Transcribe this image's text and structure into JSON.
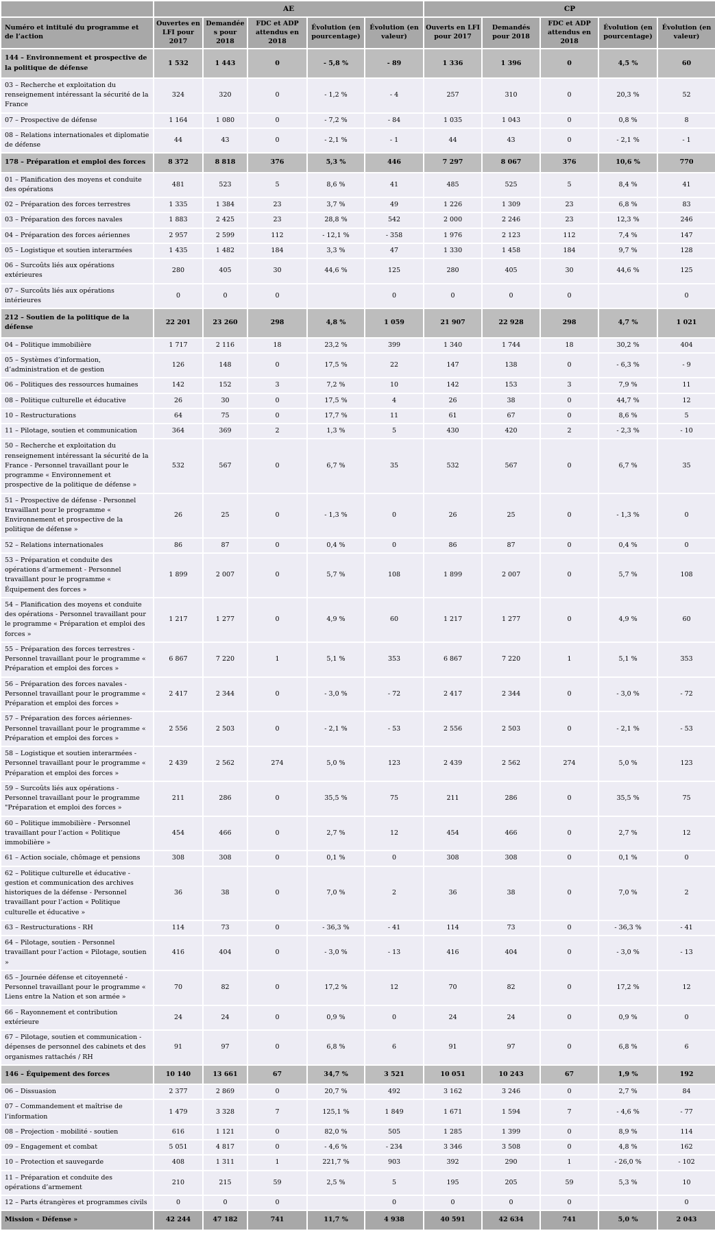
{
  "document_title": "Tableau budgétaire de la mission Défense (AE / CP)",
  "colors": {
    "header_gray": "#a8a8a8",
    "program_row_gray": "#bdbdbd",
    "total_row_gray": "#a8a8a8",
    "action_row_bg": "#edecf4",
    "grid_white": "#ffffff",
    "text": "#000000"
  },
  "table": {
    "corner_label": "Numéro et intitulé du programme et de l’action",
    "groups": [
      {
        "label": "AE"
      },
      {
        "label": "CP"
      }
    ],
    "ae_columns": [
      "Ouvertes en LFI pour 2017",
      "Demandées pour 2018",
      "FDC et ADP attendus en 2018",
      "Évolution (en pourcentage)",
      "Évolution (en valeur)"
    ],
    "cp_columns": [
      "Ouverts en LFI pour 2017",
      "Demandés pour 2018",
      "FDC et ADP attendus en 2018",
      "Évolution (en pourcentage)",
      "Évolution (en valeur)"
    ],
    "rows": [
      {
        "type": "program",
        "label": "144 – Environnement et prospective de la politique de défense",
        "ae": [
          "1 532",
          "1 443",
          "0",
          "- 5,8 %",
          "- 89"
        ],
        "cp": [
          "1 336",
          "1 396",
          "0",
          "4,5 %",
          "60"
        ]
      },
      {
        "type": "action",
        "label": "03 – Recherche et exploitation du renseignement intéressant la sécurité de la France",
        "ae": [
          "324",
          "320",
          "0",
          "- 1,2 %",
          "- 4"
        ],
        "cp": [
          "257",
          "310",
          "0",
          "20,3 %",
          "52"
        ]
      },
      {
        "type": "action",
        "label": "07 – Prospective de défense",
        "ae": [
          "1 164",
          "1 080",
          "0",
          "- 7,2 %",
          "- 84"
        ],
        "cp": [
          "1 035",
          "1 043",
          "0",
          "0,8 %",
          "8"
        ]
      },
      {
        "type": "action",
        "label": "08 – Relations internationales et diplomatie de défense",
        "ae": [
          "44",
          "43",
          "0",
          "- 2,1 %",
          "- 1"
        ],
        "cp": [
          "44",
          "43",
          "0",
          "- 2,1 %",
          "- 1"
        ]
      },
      {
        "type": "program",
        "label": "178 – Préparation et emploi des forces",
        "ae": [
          "8 372",
          "8 818",
          "376",
          "5,3 %",
          "446"
        ],
        "cp": [
          "7 297",
          "8 067",
          "376",
          "10,6 %",
          "770"
        ]
      },
      {
        "type": "action",
        "label": "01 – Planification des moyens et conduite des opérations",
        "ae": [
          "481",
          "523",
          "5",
          "8,6 %",
          "41"
        ],
        "cp": [
          "485",
          "525",
          "5",
          "8,4 %",
          "41"
        ]
      },
      {
        "type": "action",
        "label": "02 – Préparation des forces terrestres",
        "ae": [
          "1 335",
          "1 384",
          "23",
          "3,7 %",
          "49"
        ],
        "cp": [
          "1 226",
          "1 309",
          "23",
          "6,8 %",
          "83"
        ]
      },
      {
        "type": "action",
        "label": "03 – Préparation des forces navales",
        "ae": [
          "1 883",
          "2 425",
          "23",
          "28,8 %",
          "542"
        ],
        "cp": [
          "2 000",
          "2 246",
          "23",
          "12,3 %",
          "246"
        ]
      },
      {
        "type": "action",
        "label": "04 – Préparation des forces aériennes",
        "ae": [
          "2 957",
          "2 599",
          "112",
          "- 12,1 %",
          "- 358"
        ],
        "cp": [
          "1 976",
          "2 123",
          "112",
          "7,4 %",
          "147"
        ]
      },
      {
        "type": "action",
        "label": "05 – Logistique et soutien interarmées",
        "ae": [
          "1 435",
          "1 482",
          "184",
          "3,3 %",
          "47"
        ],
        "cp": [
          "1 330",
          "1 458",
          "184",
          "9,7 %",
          "128"
        ]
      },
      {
        "type": "action",
        "label": "06 – Surcoûts liés aux opérations extérieures",
        "ae": [
          "280",
          "405",
          "30",
          "44,6 %",
          "125"
        ],
        "cp": [
          "280",
          "405",
          "30",
          "44,6 %",
          "125"
        ]
      },
      {
        "type": "action",
        "label": "07 – Surcoûts liés aux opérations intérieures",
        "ae": [
          "0",
          "0",
          "0",
          "",
          "0"
        ],
        "cp": [
          "0",
          "0",
          "0",
          "",
          "0"
        ]
      },
      {
        "type": "program",
        "label": "212 – Soutien de la politique de la défense",
        "ae": [
          "22 201",
          "23 260",
          "298",
          "4,8 %",
          "1 059"
        ],
        "cp": [
          "21 907",
          "22 928",
          "298",
          "4,7 %",
          "1 021"
        ]
      },
      {
        "type": "action",
        "label": "04 – Politique immobilière",
        "ae": [
          "1 717",
          "2 116",
          "18",
          "23,2 %",
          "399"
        ],
        "cp": [
          "1 340",
          "1 744",
          "18",
          "30,2 %",
          "404"
        ]
      },
      {
        "type": "action",
        "label": "05 – Systèmes d’information, d’administration et de gestion",
        "ae": [
          "126",
          "148",
          "0",
          "17,5 %",
          "22"
        ],
        "cp": [
          "147",
          "138",
          "0",
          "- 6,3 %",
          "- 9"
        ]
      },
      {
        "type": "action",
        "label": "06 – Politiques des ressources humaines",
        "ae": [
          "142",
          "152",
          "3",
          "7,2 %",
          "10"
        ],
        "cp": [
          "142",
          "153",
          "3",
          "7,9 %",
          "11"
        ]
      },
      {
        "type": "action",
        "label": "08 – Politique culturelle et éducative",
        "ae": [
          "26",
          "30",
          "0",
          "17,5 %",
          "4"
        ],
        "cp": [
          "26",
          "38",
          "0",
          "44,7 %",
          "12"
        ]
      },
      {
        "type": "action",
        "label": "10 – Restructurations",
        "ae": [
          "64",
          "75",
          "0",
          "17,7 %",
          "11"
        ],
        "cp": [
          "61",
          "67",
          "0",
          "8,6 %",
          "5"
        ]
      },
      {
        "type": "action",
        "label": "11 – Pilotage, soutien et communication",
        "ae": [
          "364",
          "369",
          "2",
          "1,3 %",
          "5"
        ],
        "cp": [
          "430",
          "420",
          "2",
          "- 2,3 %",
          "- 10"
        ]
      },
      {
        "type": "action",
        "label": "50 – Recherche et exploitation du renseignement intéressant la sécurité de la France -  Personnel travaillant pour le programme « Environnement et prospective de la politique de défense »",
        "ae": [
          "532",
          "567",
          "0",
          "6,7 %",
          "35"
        ],
        "cp": [
          "532",
          "567",
          "0",
          "6,7 %",
          "35"
        ]
      },
      {
        "type": "action",
        "label": "51 – Prospective de défense -  Personnel travaillant pour le programme « Environnement et prospective de la politique de défense »",
        "ae": [
          "26",
          "25",
          "0",
          "- 1,3 %",
          "0"
        ],
        "cp": [
          "26",
          "25",
          "0",
          "- 1,3 %",
          "0"
        ]
      },
      {
        "type": "action",
        "label": "52 – Relations internationales",
        "ae": [
          "86",
          "87",
          "0",
          "0,4 %",
          "0"
        ],
        "cp": [
          "86",
          "87",
          "0",
          "0,4 %",
          "0"
        ]
      },
      {
        "type": "action",
        "label": "53 – Préparation et conduite des opérations d’armement -  Personnel travaillant pour le programme « Équipement des forces »",
        "ae": [
          "1 899",
          "2 007",
          "0",
          "5,7 %",
          "108"
        ],
        "cp": [
          "1 899",
          "2 007",
          "0",
          "5,7 %",
          "108"
        ]
      },
      {
        "type": "action",
        "label": "54 – Planification des moyens et conduite des opérations -  Personnel travaillant pour le programme « Préparation et emploi des forces »",
        "ae": [
          "1 217",
          "1 277",
          "0",
          "4,9 %",
          "60"
        ],
        "cp": [
          "1 217",
          "1 277",
          "0",
          "4,9 %",
          "60"
        ]
      },
      {
        "type": "action",
        "label": "55 – Préparation des forces terrestres -  Personnel travaillant pour le programme « Préparation et emploi des forces »",
        "ae": [
          "6 867",
          "7 220",
          "1",
          "5,1 %",
          "353"
        ],
        "cp": [
          "6 867",
          "7 220",
          "1",
          "5,1 %",
          "353"
        ]
      },
      {
        "type": "action",
        "label": "56 – Préparation des forces navales -  Personnel travaillant pour le programme « Préparation et emploi des forces »",
        "ae": [
          "2 417",
          "2 344",
          "0",
          "- 3,0 %",
          "- 72"
        ],
        "cp": [
          "2 417",
          "2 344",
          "0",
          "- 3,0 %",
          "- 72"
        ]
      },
      {
        "type": "action",
        "label": "57 – Préparation des forces aériennes-  Personnel travaillant pour le programme « Préparation et emploi des forces »",
        "ae": [
          "2 556",
          "2 503",
          "0",
          "- 2,1 %",
          "- 53"
        ],
        "cp": [
          "2 556",
          "2 503",
          "0",
          "- 2,1 %",
          "- 53"
        ]
      },
      {
        "type": "action",
        "label": "58 – Logistique et soutien interarmées -  Personnel travaillant pour le programme « Préparation et emploi des forces »",
        "ae": [
          "2 439",
          "2 562",
          "274",
          "5,0 %",
          "123"
        ],
        "cp": [
          "2 439",
          "2 562",
          "274",
          "5,0 %",
          "123"
        ]
      },
      {
        "type": "action",
        "label": "59 – Surcoûts liés aux opérations -  Personnel travaillant pour le programme \"Préparation et emploi des forces »",
        "ae": [
          "211",
          "286",
          "0",
          "35,5 %",
          "75"
        ],
        "cp": [
          "211",
          "286",
          "0",
          "35,5 %",
          "75"
        ]
      },
      {
        "type": "action",
        "label": "60 – Politique immobilière -  Personnel travaillant pour l’action « Politique immobilière »",
        "ae": [
          "454",
          "466",
          "0",
          "2,7 %",
          "12"
        ],
        "cp": [
          "454",
          "466",
          "0",
          "2,7 %",
          "12"
        ]
      },
      {
        "type": "action",
        "label": "61 – Action sociale, chômage et pensions",
        "ae": [
          "308",
          "308",
          "0",
          "0,1 %",
          "0"
        ],
        "cp": [
          "308",
          "308",
          "0",
          "0,1 %",
          "0"
        ]
      },
      {
        "type": "action",
        "label": "62 – Politique culturelle et éducative -  gestion et communication des archives historiques de la défense -  Personnel travaillant pour l’action « Politique culturelle et éducative »",
        "ae": [
          "36",
          "38",
          "0",
          "7,0 %",
          "2"
        ],
        "cp": [
          "36",
          "38",
          "0",
          "7,0 %",
          "2"
        ]
      },
      {
        "type": "action",
        "label": "63 – Restructurations -  RH",
        "ae": [
          "114",
          "73",
          "0",
          "- 36,3 %",
          "- 41"
        ],
        "cp": [
          "114",
          "73",
          "0",
          "- 36,3 %",
          "- 41"
        ]
      },
      {
        "type": "action",
        "label": "64 – Pilotage, soutien -  Personnel travaillant pour l’action « Pilotage, soutien »",
        "ae": [
          "416",
          "404",
          "0",
          "- 3,0 %",
          "- 13"
        ],
        "cp": [
          "416",
          "404",
          "0",
          "- 3,0 %",
          "- 13"
        ]
      },
      {
        "type": "action",
        "label": "65 – Journée défense et citoyenneté -  Personnel travaillant pour le programme « Liens entre la Nation et son armée »",
        "ae": [
          "70",
          "82",
          "0",
          "17,2 %",
          "12"
        ],
        "cp": [
          "70",
          "82",
          "0",
          "17,2 %",
          "12"
        ]
      },
      {
        "type": "action",
        "label": "66 – Rayonnement et contribution extérieure",
        "ae": [
          "24",
          "24",
          "0",
          "0,9 %",
          "0"
        ],
        "cp": [
          "24",
          "24",
          "0",
          "0,9 %",
          "0"
        ]
      },
      {
        "type": "action",
        "label": "67 – Pilotage, soutien et communication -  dépenses de personnel des cabinets et des organismes rattachés / RH",
        "ae": [
          "91",
          "97",
          "0",
          "6,8 %",
          "6"
        ],
        "cp": [
          "91",
          "97",
          "0",
          "6,8 %",
          "6"
        ]
      },
      {
        "type": "program",
        "label": "146 – Équipement des forces",
        "ae": [
          "10 140",
          "13 661",
          "67",
          "34,7 %",
          "3 521"
        ],
        "cp": [
          "10 051",
          "10 243",
          "67",
          "1,9 %",
          "192"
        ]
      },
      {
        "type": "action",
        "label": "06 – Dissuasion",
        "ae": [
          "2 377",
          "2 869",
          "0",
          "20,7 %",
          "492"
        ],
        "cp": [
          "3 162",
          "3 246",
          "0",
          "2,7 %",
          "84"
        ]
      },
      {
        "type": "action",
        "label": "07 – Commandement et maîtrise de l’information",
        "ae": [
          "1 479",
          "3 328",
          "7",
          "125,1 %",
          "1 849"
        ],
        "cp": [
          "1 671",
          "1 594",
          "7",
          "- 4,6 %",
          "- 77"
        ]
      },
      {
        "type": "action",
        "label": "08 – Projection -  mobilité -  soutien",
        "ae": [
          "616",
          "1 121",
          "0",
          "82,0 %",
          "505"
        ],
        "cp": [
          "1 285",
          "1 399",
          "0",
          "8,9 %",
          "114"
        ]
      },
      {
        "type": "action",
        "label": "09 – Engagement et combat",
        "ae": [
          "5 051",
          "4 817",
          "0",
          "- 4,6 %",
          "- 234"
        ],
        "cp": [
          "3 346",
          "3 508",
          "0",
          "4,8 %",
          "162"
        ]
      },
      {
        "type": "action",
        "label": "10 – Protection et sauvegarde",
        "ae": [
          "408",
          "1 311",
          "1",
          "221,7 %",
          "903"
        ],
        "cp": [
          "392",
          "290",
          "1",
          "- 26,0 %",
          "- 102"
        ]
      },
      {
        "type": "action",
        "label": "11 – Préparation et conduite des opérations d’armement",
        "ae": [
          "210",
          "215",
          "59",
          "2,5 %",
          "5"
        ],
        "cp": [
          "195",
          "205",
          "59",
          "5,3 %",
          "10"
        ]
      },
      {
        "type": "action",
        "label": "12 – Parts étrangères et programmes civils",
        "ae": [
          "0",
          "0",
          "0",
          "",
          "0"
        ],
        "cp": [
          "0",
          "0",
          "0",
          "",
          "0"
        ]
      },
      {
        "type": "total",
        "label": "Mission « Défense »",
        "ae": [
          "42 244",
          "47 182",
          "741",
          "11,7 %",
          "4 938"
        ],
        "cp": [
          "40 591",
          "42 634",
          "741",
          "5,0 %",
          "2 043"
        ]
      }
    ]
  }
}
